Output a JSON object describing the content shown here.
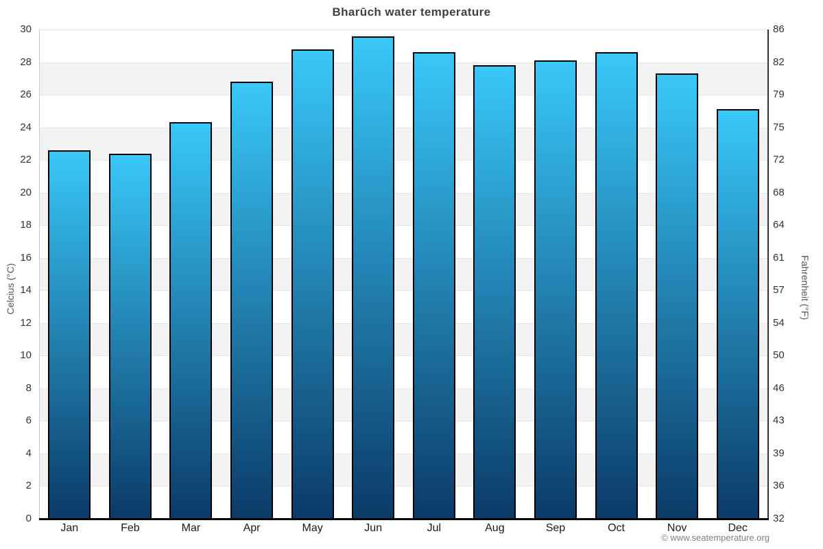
{
  "page": {
    "footer_credit": "© www.seatemperature.org"
  },
  "chart_data": {
    "type": "bar",
    "title": "Bharūch water temperature",
    "categories": [
      "Jan",
      "Feb",
      "Mar",
      "Apr",
      "May",
      "Jun",
      "Jul",
      "Aug",
      "Sep",
      "Oct",
      "Nov",
      "Dec"
    ],
    "values": [
      22.6,
      22.4,
      24.3,
      26.8,
      28.8,
      29.6,
      28.6,
      27.8,
      28.1,
      28.6,
      27.3,
      25.1
    ],
    "ylabel_left": "Celcius (°C)",
    "ylabel_right": "Fahrenheit (°F)",
    "ylim": [
      0,
      30
    ],
    "yticks_left": [
      0,
      2,
      4,
      6,
      8,
      10,
      12,
      14,
      16,
      18,
      20,
      22,
      24,
      26,
      28,
      30
    ],
    "yticks_right": [
      32,
      36,
      39,
      43,
      46,
      50,
      54,
      57,
      61,
      64,
      68,
      72,
      75,
      79,
      82,
      86
    ],
    "legend": "none",
    "grid": "alternating horizontal bands every 2°C",
    "colors": {
      "bar_gradient_top": "#38c8f9",
      "bar_gradient_bottom": "#0b3a67",
      "bar_border": "#000000",
      "band_light": "#ffffff",
      "band_gray": "#f2f2f2",
      "title_text": "#404040",
      "axis_text": "#333333",
      "axis_title_text": "#555555",
      "footer_text": "#808080"
    }
  }
}
